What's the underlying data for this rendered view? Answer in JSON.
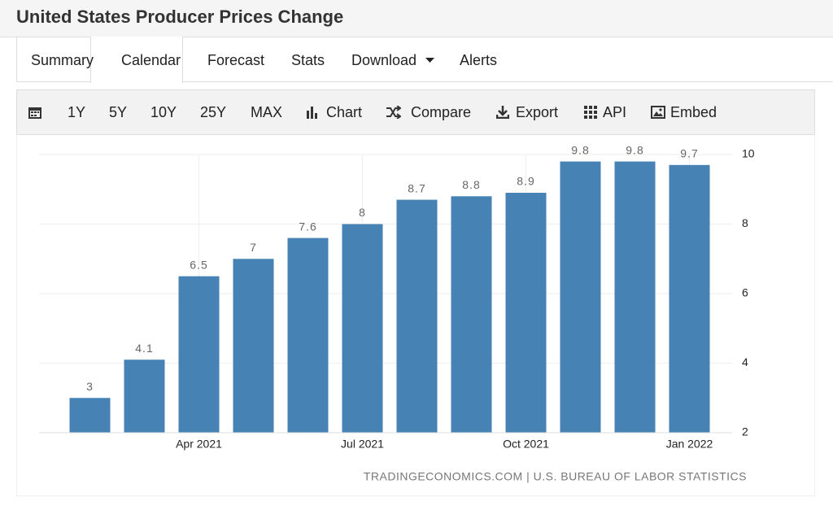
{
  "header": {
    "title": "United States Producer Prices Change"
  },
  "tabs": [
    "Summary",
    "Calendar",
    "Forecast",
    "Stats",
    "Download",
    "Alerts"
  ],
  "toolbar": [
    "1Y",
    "5Y",
    "10Y",
    "25Y",
    "MAX",
    "Chart",
    "Compare",
    "Export",
    "API",
    "Embed"
  ],
  "chart_data": {
    "type": "bar",
    "categories": [
      null,
      null,
      "Apr 2021",
      null,
      null,
      "Jul 2021",
      null,
      null,
      "Oct 2021",
      null,
      null,
      "Jan 2022"
    ],
    "values": [
      3,
      4.1,
      6.5,
      7,
      7.6,
      8,
      8.7,
      8.8,
      8.9,
      9.8,
      9.8,
      9.7
    ],
    "color": "#4682b4",
    "ylim": [
      2,
      10
    ],
    "yticks": [
      2,
      4,
      6,
      8,
      10
    ],
    "grid": true,
    "source": "TRADINGECONOMICS.COM | U.S. BUREAU OF LABOR STATISTICS"
  }
}
